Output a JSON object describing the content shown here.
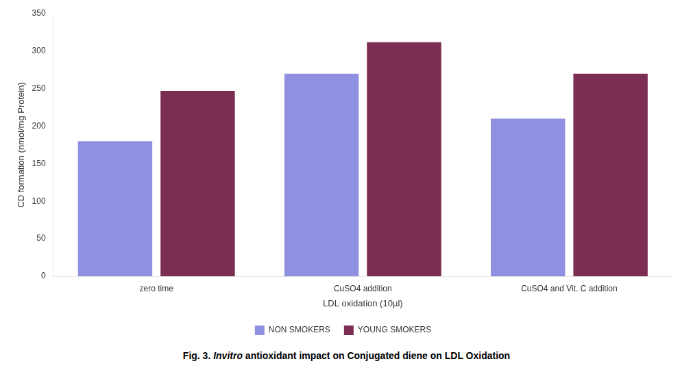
{
  "chart_data": {
    "type": "bar",
    "categories": [
      "zero time",
      "CuSO4 addition",
      "CuSO4 and Vit. C addition"
    ],
    "series": [
      {
        "name": "NON SMOKERS",
        "color": "#9090E0",
        "values": [
          180,
          270,
          210
        ]
      },
      {
        "name": "YOUNG SMOKERS",
        "color": "#7B2D52",
        "values": [
          247,
          312,
          270
        ]
      }
    ],
    "xlabel": "LDL oxidation (10µl)",
    "ylabel": "CD formation (nmol/mg Protein)",
    "ylim": [
      0,
      350
    ],
    "yticks": [
      0,
      50,
      100,
      150,
      200,
      250,
      300,
      350
    ],
    "grid": false,
    "legend": "bottom",
    "caption": [
      "Fig. 3. ",
      "Invitro",
      " antioxidant impact on Conjugated diene on LDL Oxidation"
    ]
  }
}
